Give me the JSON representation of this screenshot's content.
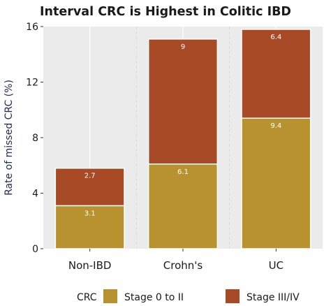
{
  "chart_data": {
    "type": "bar",
    "stacked": true,
    "title": "Interval CRC is Highest in Colitic IBD",
    "xlabel": "",
    "ylabel": "Rate of missed CRC (%)",
    "ylim": [
      0,
      16
    ],
    "yticks": [
      0,
      4,
      8,
      12,
      16
    ],
    "categories": [
      "Non-IBD",
      "Crohn's",
      "UC"
    ],
    "series": [
      {
        "name": "Stage 0 to II",
        "values": [
          3.1,
          6.1,
          9.4
        ],
        "color": "#b8922e"
      },
      {
        "name": "Stage III/IV",
        "values": [
          2.7,
          9,
          6.4
        ],
        "color": "#a84a26"
      }
    ],
    "data_labels": [
      [
        "3.1",
        "6.1",
        "9.4"
      ],
      [
        "2.7",
        "9",
        "6.4"
      ]
    ],
    "legend": {
      "title": "CRC",
      "position": "bottom"
    },
    "grid": {
      "x": true,
      "y": false
    },
    "plot_background": "#ebebeb",
    "grid_color": "#ffffff"
  }
}
